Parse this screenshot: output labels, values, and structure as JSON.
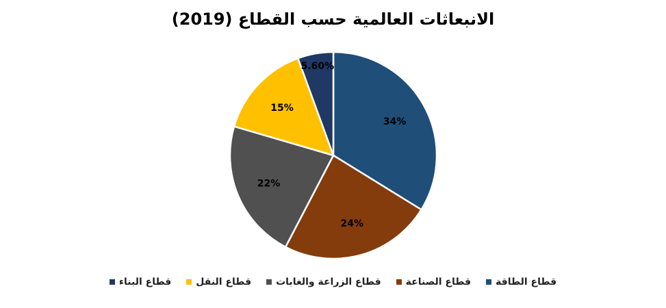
{
  "chart_data": {
    "type": "pie",
    "title": "الانبعاثات العالمية حسب القطاع (2019)",
    "slices": [
      {
        "label": "قطاع الطاقة",
        "value": 34,
        "display": "34%",
        "color": "#1F4E79"
      },
      {
        "label": "قطاع الصناعة",
        "value": 24,
        "display": "24%",
        "color": "#843C0C"
      },
      {
        "label": "قطاع الزراعة والغابات",
        "value": 22,
        "display": "22%",
        "color": "#505050"
      },
      {
        "label": "قطاع النقل",
        "value": 15,
        "display": "15%",
        "color": "#FFC000"
      },
      {
        "label": "قطاع البناء",
        "value": 5.6,
        "display": "5.60%",
        "color": "#203864"
      }
    ],
    "legend_order": [
      4,
      3,
      2,
      1,
      0
    ],
    "legend_position": "bottom"
  }
}
